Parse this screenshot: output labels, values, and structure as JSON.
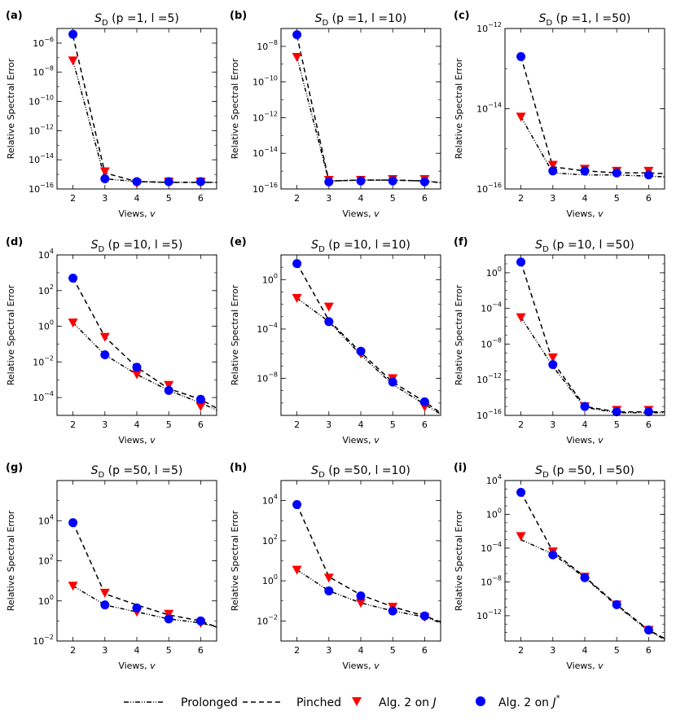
{
  "legend": {
    "prolonged": "Prolonged",
    "pinched": "Pinched",
    "alg_J": "Alg. 2 on J",
    "alg_Jstar": "Alg. 2 on J*"
  },
  "colors": {
    "marker_J": "#ff0000",
    "marker_Jstar": "#0000ff",
    "line": "#000000"
  },
  "chart_data": [
    {
      "panel": "(a)",
      "type": "line",
      "title": "S_D (p =1, l =5)",
      "xlabel": "Views, v",
      "ylabel": "Relative Spectral Error",
      "yscale": "log",
      "ylim_exp": [
        -16,
        -5
      ],
      "yticks_exp": [
        -16,
        -14,
        -12,
        -10,
        -8,
        -6
      ],
      "xlim": [
        1.5,
        6.5
      ],
      "xticks": [
        2,
        3,
        4,
        5,
        6
      ],
      "pinched_exp": [
        [
          2,
          -5.5
        ],
        [
          3,
          -14.9
        ],
        [
          4,
          -15.5
        ],
        [
          5,
          -15.55
        ],
        [
          6,
          -15.55
        ],
        [
          6.5,
          -15.55
        ]
      ],
      "prolonged_exp": [
        [
          2,
          -7.2
        ],
        [
          3,
          -15.3
        ],
        [
          4,
          -15.5
        ],
        [
          5,
          -15.55
        ],
        [
          6,
          -15.55
        ],
        [
          6.5,
          -15.55
        ]
      ],
      "alg_J_exp": [
        [
          2,
          -7.2
        ],
        [
          3,
          -14.8
        ],
        [
          4,
          -15.6
        ],
        [
          5,
          -15.5
        ],
        [
          6,
          -15.5
        ]
      ],
      "alg_Jstar_exp": [
        [
          2,
          -5.4
        ],
        [
          3,
          -15.3
        ],
        [
          4,
          -15.5
        ],
        [
          5,
          -15.5
        ],
        [
          6,
          -15.5
        ]
      ]
    },
    {
      "panel": "(b)",
      "type": "line",
      "title": "S_D (p =1, l =10)",
      "xlabel": "Views, v",
      "ylabel": "",
      "yscale": "log",
      "ylim_exp": [
        -16,
        -7
      ],
      "yticks_exp": [
        -16,
        -14,
        -12,
        -10,
        -8
      ],
      "xlim": [
        1.5,
        6.5
      ],
      "xticks": [
        2,
        3,
        4,
        5,
        6
      ],
      "pinched_exp": [
        [
          2,
          -7.4
        ],
        [
          3,
          -15.55
        ],
        [
          4,
          -15.5
        ],
        [
          5,
          -15.5
        ],
        [
          6,
          -15.55
        ],
        [
          6.5,
          -15.65
        ]
      ],
      "prolonged_exp": [
        [
          2,
          -8.6
        ],
        [
          3,
          -15.55
        ],
        [
          4,
          -15.5
        ],
        [
          5,
          -15.5
        ],
        [
          6,
          -15.55
        ],
        [
          6.5,
          -15.65
        ]
      ],
      "alg_J_exp": [
        [
          2,
          -8.6
        ],
        [
          3,
          -15.5
        ],
        [
          4,
          -15.5
        ],
        [
          5,
          -15.45
        ],
        [
          6,
          -15.45
        ]
      ],
      "alg_Jstar_exp": [
        [
          2,
          -7.35
        ],
        [
          3,
          -15.6
        ],
        [
          4,
          -15.55
        ],
        [
          5,
          -15.55
        ],
        [
          6,
          -15.6
        ]
      ]
    },
    {
      "panel": "(c)",
      "type": "line",
      "title": "S_D (p =1, l =50)",
      "xlabel": "Views, v",
      "ylabel": "",
      "yscale": "log",
      "ylim_exp": [
        -16,
        -12
      ],
      "yticks_exp": [
        -16,
        -14,
        -12
      ],
      "xlim": [
        1.5,
        6.5
      ],
      "xticks": [
        2,
        3,
        4,
        5,
        6
      ],
      "pinched_exp": [
        [
          2,
          -12.7
        ],
        [
          3,
          -15.45
        ],
        [
          4,
          -15.55
        ],
        [
          5,
          -15.6
        ],
        [
          6,
          -15.6
        ],
        [
          6.5,
          -15.62
        ]
      ],
      "prolonged_exp": [
        [
          2,
          -14.2
        ],
        [
          3,
          -15.6
        ],
        [
          4,
          -15.65
        ],
        [
          5,
          -15.65
        ],
        [
          6,
          -15.68
        ],
        [
          6.5,
          -15.7
        ]
      ],
      "alg_J_exp": [
        [
          2,
          -14.2
        ],
        [
          3,
          -15.4
        ],
        [
          4,
          -15.5
        ],
        [
          5,
          -15.55
        ],
        [
          6,
          -15.55
        ]
      ],
      "alg_Jstar_exp": [
        [
          2,
          -12.7
        ],
        [
          3,
          -15.55
        ],
        [
          4,
          -15.55
        ],
        [
          5,
          -15.6
        ],
        [
          6,
          -15.65
        ]
      ]
    },
    {
      "panel": "(d)",
      "type": "line",
      "title": "S_D (p =10, l =5)",
      "xlabel": "Views, v",
      "ylabel": "Relative Spectral Error",
      "yscale": "log",
      "ylim_exp": [
        -5,
        4
      ],
      "yticks_exp": [
        -4,
        -2,
        0,
        2,
        4
      ],
      "xlim": [
        1.5,
        6.5
      ],
      "xticks": [
        2,
        3,
        4,
        5,
        6
      ],
      "pinched_exp": [
        [
          2,
          2.7
        ],
        [
          3,
          -0.6
        ],
        [
          4,
          -2.3
        ],
        [
          5,
          -3.5
        ],
        [
          6,
          -4.1
        ],
        [
          6.5,
          -4.6
        ]
      ],
      "prolonged_exp": [
        [
          2,
          0.2
        ],
        [
          3,
          -1.6
        ],
        [
          4,
          -2.7
        ],
        [
          5,
          -3.6
        ],
        [
          6,
          -4.3
        ],
        [
          6.5,
          -4.7
        ]
      ],
      "alg_J_exp": [
        [
          2,
          0.2
        ],
        [
          3,
          -0.6
        ],
        [
          4,
          -2.7
        ],
        [
          5,
          -3.3
        ],
        [
          6,
          -4.5
        ]
      ],
      "alg_Jstar_exp": [
        [
          2,
          2.7
        ],
        [
          3,
          -1.6
        ],
        [
          4,
          -2.3
        ],
        [
          5,
          -3.6
        ],
        [
          6,
          -4.1
        ]
      ]
    },
    {
      "panel": "(e)",
      "type": "line",
      "title": "S_D (p =10, l =10)",
      "xlabel": "Views, v",
      "ylabel": "",
      "yscale": "log",
      "ylim_exp": [
        -11,
        2
      ],
      "yticks_exp": [
        -8,
        -4,
        0
      ],
      "xlim": [
        1.5,
        6.5
      ],
      "xticks": [
        2,
        3,
        4,
        5,
        6
      ],
      "pinched_exp": [
        [
          2,
          1.3
        ],
        [
          3,
          -3.3
        ],
        [
          4,
          -5.9
        ],
        [
          5,
          -8.3
        ],
        [
          6,
          -9.9
        ],
        [
          6.5,
          -10.8
        ]
      ],
      "prolonged_exp": [
        [
          2,
          -1.5
        ],
        [
          3,
          -3.4
        ],
        [
          4,
          -6.1
        ],
        [
          5,
          -8.5
        ],
        [
          6,
          -10.1
        ],
        [
          6.5,
          -10.9
        ]
      ],
      "alg_J_exp": [
        [
          2,
          -1.5
        ],
        [
          3,
          -2.2
        ],
        [
          4,
          -6.0
        ],
        [
          5,
          -8.0
        ],
        [
          6,
          -10.3
        ]
      ],
      "alg_Jstar_exp": [
        [
          2,
          1.3
        ],
        [
          3,
          -3.4
        ],
        [
          4,
          -5.8
        ],
        [
          5,
          -8.3
        ],
        [
          6,
          -9.9
        ]
      ]
    },
    {
      "panel": "(f)",
      "type": "line",
      "title": "S_D (p =10, l =50)",
      "xlabel": "Views, v",
      "ylabel": "",
      "yscale": "log",
      "ylim_exp": [
        -16,
        2
      ],
      "yticks_exp": [
        -16,
        -12,
        -8,
        -4,
        0
      ],
      "xlim": [
        1.5,
        6.5
      ],
      "xticks": [
        2,
        3,
        4,
        5,
        6
      ],
      "pinched_exp": [
        [
          2,
          1.2
        ],
        [
          3,
          -10
        ],
        [
          4,
          -15
        ],
        [
          5,
          -15.6
        ],
        [
          6,
          -15.6
        ],
        [
          6.5,
          -15.6
        ]
      ],
      "prolonged_exp": [
        [
          2,
          -5
        ],
        [
          3,
          -10.5
        ],
        [
          4,
          -15.1
        ],
        [
          5,
          -15.7
        ],
        [
          6,
          -15.7
        ],
        [
          6.5,
          -15.7
        ]
      ],
      "alg_J_exp": [
        [
          2,
          -5
        ],
        [
          3,
          -9.5
        ],
        [
          4,
          -15
        ],
        [
          5,
          -15.4
        ],
        [
          6,
          -15.4
        ]
      ],
      "alg_Jstar_exp": [
        [
          2,
          1.2
        ],
        [
          3,
          -10.3
        ],
        [
          4,
          -15
        ],
        [
          5,
          -15.6
        ],
        [
          6,
          -15.6
        ]
      ]
    },
    {
      "panel": "(g)",
      "type": "line",
      "title": "S_D (p =50, l =5)",
      "xlabel": "Views, v",
      "ylabel": "Relative Spectral Error",
      "yscale": "log",
      "ylim_exp": [
        -2,
        6
      ],
      "yticks_exp": [
        -2,
        0,
        2,
        4
      ],
      "xlim": [
        1.5,
        6.5
      ],
      "xticks": [
        2,
        3,
        4,
        5,
        6
      ],
      "pinched_exp": [
        [
          2,
          3.9
        ],
        [
          3,
          0.35
        ],
        [
          4,
          -0.2
        ],
        [
          5,
          -0.7
        ],
        [
          6,
          -1.0
        ],
        [
          6.5,
          -1.3
        ]
      ],
      "prolonged_exp": [
        [
          2,
          0.75
        ],
        [
          3,
          -0.2
        ],
        [
          4,
          -0.55
        ],
        [
          5,
          -0.9
        ],
        [
          6,
          -1.1
        ],
        [
          6.5,
          -1.3
        ]
      ],
      "alg_J_exp": [
        [
          2,
          0.75
        ],
        [
          3,
          0.4
        ],
        [
          4,
          -0.55
        ],
        [
          5,
          -0.65
        ],
        [
          6,
          -1.1
        ]
      ],
      "alg_Jstar_exp": [
        [
          2,
          3.9
        ],
        [
          3,
          -0.2
        ],
        [
          4,
          -0.35
        ],
        [
          5,
          -0.9
        ],
        [
          6,
          -1.0
        ]
      ]
    },
    {
      "panel": "(h)",
      "type": "line",
      "title": "S_D (p =50, l =10)",
      "xlabel": "Views, v",
      "ylabel": "",
      "yscale": "log",
      "ylim_exp": [
        -3,
        5
      ],
      "yticks_exp": [
        -2,
        0,
        2,
        4
      ],
      "xlim": [
        1.5,
        6.5
      ],
      "xticks": [
        2,
        3,
        4,
        5,
        6
      ],
      "pinched_exp": [
        [
          2,
          3.8
        ],
        [
          3,
          0.2
        ],
        [
          4,
          -0.7
        ],
        [
          5,
          -1.3
        ],
        [
          6,
          -1.75
        ],
        [
          6.5,
          -2.05
        ]
      ],
      "prolonged_exp": [
        [
          2,
          0.55
        ],
        [
          3,
          -0.5
        ],
        [
          4,
          -1.1
        ],
        [
          5,
          -1.5
        ],
        [
          6,
          -1.8
        ],
        [
          6.5,
          -2.1
        ]
      ],
      "alg_J_exp": [
        [
          2,
          0.55
        ],
        [
          3,
          0.15
        ],
        [
          4,
          -1.1
        ],
        [
          5,
          -1.3
        ],
        [
          6,
          -1.8
        ]
      ],
      "alg_Jstar_exp": [
        [
          2,
          3.8
        ],
        [
          3,
          -0.5
        ],
        [
          4,
          -0.75
        ],
        [
          5,
          -1.5
        ],
        [
          6,
          -1.75
        ]
      ]
    },
    {
      "panel": "(i)",
      "type": "line",
      "title": "S_D (p =50, l =50)",
      "xlabel": "Views, v",
      "ylabel": "",
      "yscale": "log",
      "ylim_exp": [
        -15,
        4
      ],
      "yticks_exp": [
        -12,
        -8,
        -4,
        0,
        4
      ],
      "xlim": [
        1.5,
        6.5
      ],
      "xticks": [
        2,
        3,
        4,
        5,
        6
      ],
      "pinched_exp": [
        [
          2,
          2.6
        ],
        [
          3,
          -4.4
        ],
        [
          4,
          -7.4
        ],
        [
          5,
          -10.7
        ],
        [
          6,
          -13.7
        ],
        [
          6.5,
          -14.7
        ]
      ],
      "prolonged_exp": [
        [
          2,
          -3
        ],
        [
          3,
          -4.7
        ],
        [
          4,
          -7.5
        ],
        [
          5,
          -10.8
        ],
        [
          6,
          -13.8
        ],
        [
          6.5,
          -14.8
        ]
      ],
      "alg_J_exp": [
        [
          2,
          -2.6
        ],
        [
          3,
          -4.4
        ],
        [
          4,
          -7.4
        ],
        [
          5,
          -10.7
        ],
        [
          6,
          -13.7
        ]
      ],
      "alg_Jstar_exp": [
        [
          2,
          2.6
        ],
        [
          3,
          -4.8
        ],
        [
          4,
          -7.5
        ],
        [
          5,
          -10.7
        ],
        [
          6,
          -13.7
        ]
      ]
    }
  ]
}
